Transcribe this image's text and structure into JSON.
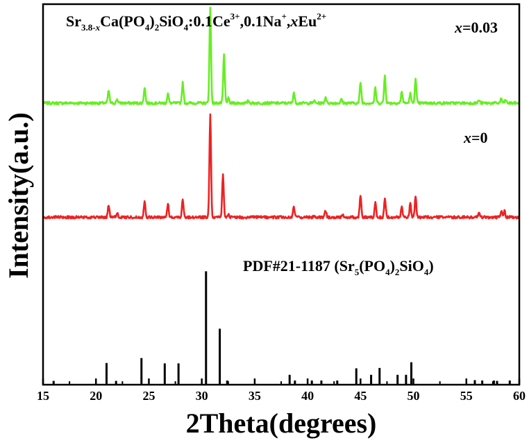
{
  "chart_data": {
    "type": "line",
    "title": "",
    "xlabel": "2Theta(degrees)",
    "ylabel": "Intensity(a.u.)",
    "xlim": [
      15,
      60
    ],
    "ylim": [
      0,
      100
    ],
    "x_ticks": [
      "15",
      "20",
      "25",
      "30",
      "35",
      "40",
      "45",
      "50",
      "55",
      "60"
    ],
    "annotations": {
      "formula": {
        "a": "Sr",
        "b": "3.8-",
        "c": "x",
        "d": "Ca(PO",
        "e": "4",
        "f": ")",
        "g": "2",
        "h": "SiO",
        "i": "4",
        "j": ":0.1Ce",
        "k": "3+",
        "l": ",0.1Na",
        "m": "+",
        "n": ",",
        "o": "x",
        "p": "Eu",
        "q": "2+"
      },
      "green_label": {
        "var": "x",
        "val": "=0.03"
      },
      "red_label": {
        "var": "x",
        "val": "=0"
      },
      "pdf_label": {
        "a": "PDF#21-1187 (Sr",
        "b": "5",
        "c": "(PO",
        "d": "4",
        "e": ")",
        "f": "2",
        "g": "SiO",
        "h": "4",
        "i": ")"
      }
    },
    "colors": {
      "green": "#66ee22",
      "red": "#ee2222",
      "ref": "#000000"
    },
    "series": [
      {
        "name": "x=0.03",
        "color": "#66ee22",
        "baseline": 74,
        "noise": 0.35,
        "peaks": [
          [
            21.2,
            3.3
          ],
          [
            22.0,
            1.0
          ],
          [
            24.6,
            4.2
          ],
          [
            26.8,
            2.5
          ],
          [
            28.2,
            5.3
          ],
          [
            30.8,
            25.0
          ],
          [
            32.1,
            12.8
          ],
          [
            32.5,
            1.2
          ],
          [
            34.4,
            0.6
          ],
          [
            38.7,
            2.8
          ],
          [
            40.6,
            0.6
          ],
          [
            41.7,
            1.6
          ],
          [
            43.2,
            1.0
          ],
          [
            45.0,
            5.5
          ],
          [
            46.4,
            4.0
          ],
          [
            47.3,
            7.2
          ],
          [
            48.9,
            3.0
          ],
          [
            49.7,
            2.5
          ],
          [
            50.2,
            6.2
          ],
          [
            56.2,
            0.8
          ],
          [
            58.3,
            1.2
          ],
          [
            58.7,
            0.8
          ]
        ]
      },
      {
        "name": "x=0",
        "color": "#ee2222",
        "baseline": 44,
        "noise": 0.35,
        "peaks": [
          [
            21.2,
            3.2
          ],
          [
            22.0,
            1.0
          ],
          [
            24.6,
            4.3
          ],
          [
            26.8,
            3.6
          ],
          [
            28.2,
            4.8
          ],
          [
            30.8,
            27.3
          ],
          [
            32.0,
            11.1
          ],
          [
            32.5,
            1.0
          ],
          [
            38.7,
            2.7
          ],
          [
            40.6,
            0.5
          ],
          [
            41.7,
            1.7
          ],
          [
            43.3,
            0.7
          ],
          [
            45.0,
            5.8
          ],
          [
            46.4,
            3.7
          ],
          [
            47.3,
            5.1
          ],
          [
            48.9,
            2.7
          ],
          [
            49.7,
            3.7
          ],
          [
            50.2,
            5.3
          ],
          [
            56.2,
            1.5
          ],
          [
            58.3,
            1.6
          ],
          [
            58.6,
            1.6
          ]
        ]
      }
    ],
    "reference_sticks": [
      [
        16.0,
        1.0
      ],
      [
        21.0,
        5.7
      ],
      [
        21.9,
        1.0
      ],
      [
        24.3,
        7.0
      ],
      [
        26.5,
        5.6
      ],
      [
        27.8,
        5.6
      ],
      [
        30.4,
        29.8
      ],
      [
        31.7,
        14.7
      ],
      [
        32.4,
        1.1
      ],
      [
        38.3,
        2.6
      ],
      [
        38.8,
        1.1
      ],
      [
        40.4,
        1.1
      ],
      [
        41.3,
        1.1
      ],
      [
        42.8,
        1.1
      ],
      [
        44.6,
        4.3
      ],
      [
        46.0,
        2.6
      ],
      [
        46.8,
        4.4
      ],
      [
        48.5,
        2.6
      ],
      [
        49.3,
        2.6
      ],
      [
        49.8,
        5.9
      ],
      [
        55.8,
        1.2
      ],
      [
        56.5,
        1.1
      ],
      [
        57.6,
        1.1
      ],
      [
        57.9,
        1.0
      ],
      [
        59.1,
        1.1
      ]
    ]
  }
}
